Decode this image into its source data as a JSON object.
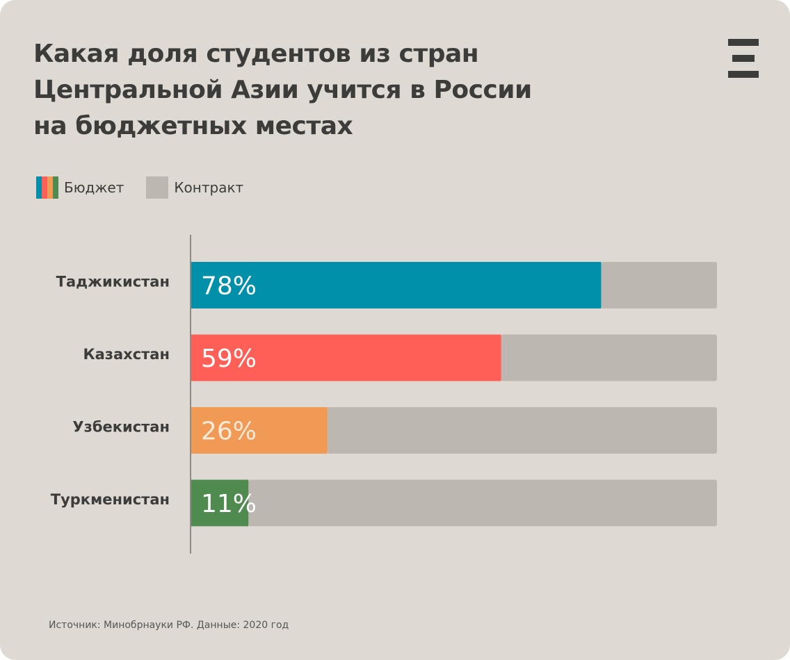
{
  "title_lines": [
    "Какая доля студентов из стран",
    "Центральной Азии учится в России",
    "на бюджетных местах"
  ],
  "legend": {
    "budget_label": "Бюджет",
    "contract_label": "Контракт",
    "budget_swatch_colors": [
      "#0090aa",
      "#ff5f57",
      "#f09a55",
      "#4f8a4f"
    ],
    "contract_color": "#bcb7b0"
  },
  "logo": {
    "name": "Ξ",
    "color": "#3c3c3b"
  },
  "source": "Источник: Минобрнауки РФ. Данные: 2020 год",
  "chart_data": {
    "type": "bar",
    "orientation": "horizontal",
    "stacked": true,
    "title": "Какая доля студентов из стран Центральной Азии учится в России на бюджетных местах",
    "xlim": [
      0,
      100
    ],
    "unit": "%",
    "categories": [
      "Таджикистан",
      "Казахстан",
      "Узбекистан",
      "Туркменистан"
    ],
    "series": [
      {
        "name": "Бюджет",
        "values": [
          78,
          59,
          26,
          11
        ],
        "labels": [
          "78%",
          "59%",
          "26%",
          "11%"
        ],
        "colors": [
          "#0090aa",
          "#ff5f57",
          "#f09a55",
          "#4f8a4f"
        ]
      },
      {
        "name": "Контракт",
        "values": [
          22,
          41,
          74,
          89
        ],
        "color": "#bcb7b0"
      }
    ],
    "value_label_colors": [
      "#ffffff",
      "#ffffff",
      "#f6ead9",
      "#ffffff"
    ],
    "category_label_color": "#3c3c3b",
    "axis_color": "#8e8a84",
    "legend": "top-left",
    "grid": false
  }
}
